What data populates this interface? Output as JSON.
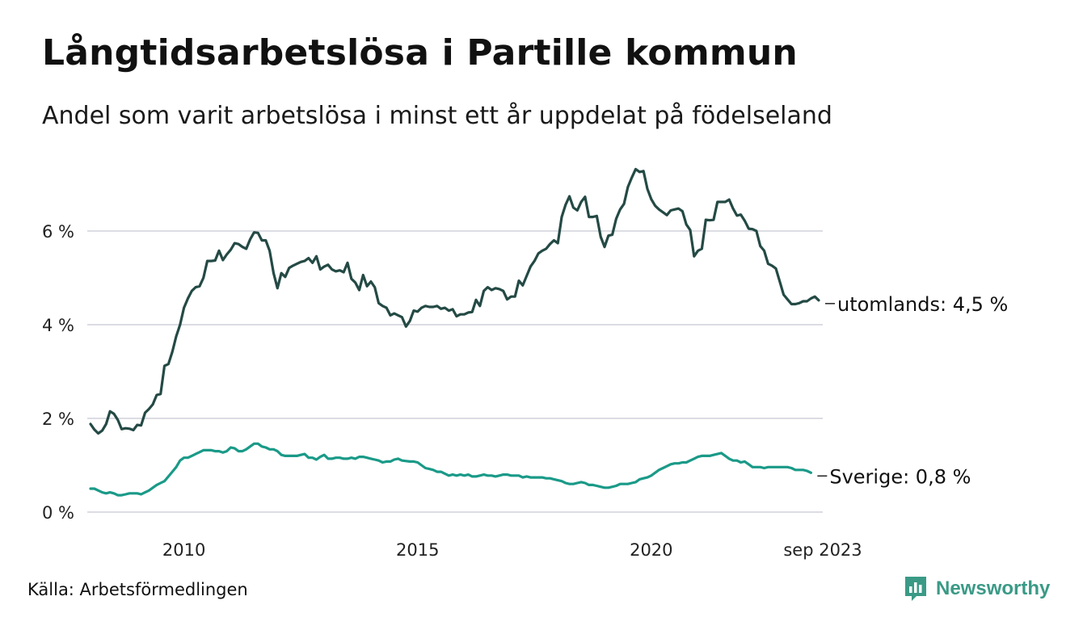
{
  "header": {
    "title": "Långtidsarbetslösa i Partille kommun",
    "subtitle": "Andel som varit arbetslösa i minst ett år uppdelat på födelseland"
  },
  "footer": {
    "source": "Källa: Arbetsförmedlingen",
    "brand": "Newsworthy"
  },
  "colors": {
    "utomlands": "#244a45",
    "sverige": "#1a9a88",
    "grid": "#dcdce4",
    "brand": "#3a9a86"
  },
  "chart_data": {
    "type": "line",
    "title": "Långtidsarbetslösa i Partille kommun",
    "subtitle": "Andel som varit arbetslösa i minst ett år uppdelat på födelseland",
    "x_start": 2008.0,
    "x_step": 0.0833333,
    "xlim": [
      2008.0,
      2023.67
    ],
    "ylim": [
      0,
      7.4
    ],
    "y_ticks": [
      0,
      2,
      4,
      6
    ],
    "y_tick_labels": [
      "0 %",
      "2 %",
      "4 %",
      "6 %"
    ],
    "x_ticks": [
      2010,
      2015,
      2020,
      2023.67
    ],
    "x_tick_labels": [
      "2010",
      "2015",
      "2020",
      "sep 2023"
    ],
    "grid": true,
    "series": [
      {
        "name": "utomlands",
        "end_label": "utomlands: 4,5 %",
        "values": [
          1.88,
          1.76,
          1.68,
          1.74,
          1.88,
          2.15,
          2.1,
          1.97,
          1.77,
          1.79,
          1.78,
          1.75,
          1.86,
          1.85,
          2.12,
          2.2,
          2.3,
          2.5,
          2.52,
          3.12,
          3.16,
          3.42,
          3.75,
          4.0,
          4.36,
          4.56,
          4.72,
          4.8,
          4.82,
          5.0,
          5.36,
          5.36,
          5.37,
          5.58,
          5.38,
          5.5,
          5.6,
          5.74,
          5.72,
          5.66,
          5.62,
          5.82,
          5.97,
          5.96,
          5.8,
          5.8,
          5.58,
          5.1,
          4.78,
          5.1,
          5.02,
          5.21,
          5.26,
          5.3,
          5.34,
          5.36,
          5.42,
          5.32,
          5.46,
          5.18,
          5.24,
          5.28,
          5.18,
          5.14,
          5.16,
          5.12,
          5.32,
          4.98,
          4.9,
          4.74,
          5.06,
          4.82,
          4.92,
          4.8,
          4.46,
          4.4,
          4.36,
          4.2,
          4.24,
          4.2,
          4.16,
          3.96,
          4.08,
          4.3,
          4.28,
          4.36,
          4.4,
          4.38,
          4.38,
          4.4,
          4.34,
          4.36,
          4.3,
          4.33,
          4.18,
          4.22,
          4.22,
          4.26,
          4.27,
          4.53,
          4.4,
          4.72,
          4.8,
          4.74,
          4.78,
          4.76,
          4.72,
          4.54,
          4.6,
          4.6,
          4.94,
          4.84,
          5.04,
          5.24,
          5.36,
          5.52,
          5.58,
          5.62,
          5.72,
          5.8,
          5.74,
          6.3,
          6.56,
          6.74,
          6.5,
          6.44,
          6.62,
          6.73,
          6.3,
          6.3,
          6.32,
          5.88,
          5.66,
          5.9,
          5.92,
          6.26,
          6.46,
          6.58,
          6.94,
          7.14,
          7.32,
          7.26,
          7.28,
          6.9,
          6.68,
          6.54,
          6.46,
          6.4,
          6.34,
          6.44,
          6.46,
          6.48,
          6.42,
          6.14,
          6.02,
          5.46,
          5.58,
          5.62,
          6.24,
          6.23,
          6.24,
          6.62,
          6.62,
          6.62,
          6.67,
          6.48,
          6.33,
          6.35,
          6.22,
          6.05,
          6.04,
          6.0,
          5.68,
          5.58,
          5.3,
          5.26,
          5.2,
          4.92,
          4.64,
          4.54,
          4.44,
          4.44,
          4.46,
          4.5,
          4.5,
          4.56,
          4.6,
          4.52
        ]
      },
      {
        "name": "Sverige",
        "end_label": "Sverige: 0,8 %",
        "values": [
          0.5,
          0.5,
          0.46,
          0.42,
          0.4,
          0.42,
          0.4,
          0.36,
          0.36,
          0.38,
          0.4,
          0.4,
          0.4,
          0.38,
          0.42,
          0.46,
          0.52,
          0.58,
          0.62,
          0.66,
          0.76,
          0.86,
          0.96,
          1.1,
          1.16,
          1.16,
          1.2,
          1.24,
          1.28,
          1.32,
          1.32,
          1.32,
          1.3,
          1.3,
          1.27,
          1.3,
          1.38,
          1.36,
          1.3,
          1.3,
          1.34,
          1.4,
          1.46,
          1.46,
          1.4,
          1.38,
          1.34,
          1.34,
          1.3,
          1.22,
          1.2,
          1.2,
          1.2,
          1.2,
          1.22,
          1.24,
          1.16,
          1.16,
          1.12,
          1.18,
          1.22,
          1.14,
          1.14,
          1.16,
          1.16,
          1.14,
          1.14,
          1.16,
          1.14,
          1.18,
          1.18,
          1.16,
          1.14,
          1.12,
          1.1,
          1.06,
          1.08,
          1.08,
          1.12,
          1.14,
          1.1,
          1.09,
          1.08,
          1.08,
          1.06,
          1.0,
          0.94,
          0.92,
          0.9,
          0.86,
          0.86,
          0.82,
          0.78,
          0.8,
          0.78,
          0.8,
          0.78,
          0.8,
          0.76,
          0.76,
          0.78,
          0.8,
          0.78,
          0.78,
          0.76,
          0.78,
          0.8,
          0.8,
          0.78,
          0.78,
          0.78,
          0.74,
          0.76,
          0.74,
          0.74,
          0.74,
          0.74,
          0.72,
          0.72,
          0.7,
          0.68,
          0.66,
          0.62,
          0.6,
          0.6,
          0.62,
          0.64,
          0.62,
          0.58,
          0.58,
          0.56,
          0.54,
          0.52,
          0.52,
          0.54,
          0.56,
          0.6,
          0.6,
          0.6,
          0.62,
          0.64,
          0.7,
          0.72,
          0.74,
          0.78,
          0.84,
          0.9,
          0.94,
          0.98,
          1.02,
          1.04,
          1.04,
          1.06,
          1.06,
          1.1,
          1.14,
          1.18,
          1.2,
          1.2,
          1.2,
          1.22,
          1.24,
          1.26,
          1.2,
          1.14,
          1.1,
          1.1,
          1.06,
          1.08,
          1.02,
          0.96,
          0.96,
          0.96,
          0.94,
          0.96,
          0.96,
          0.96,
          0.96,
          0.96,
          0.96,
          0.94,
          0.9,
          0.9,
          0.9,
          0.88,
          0.84
        ]
      }
    ]
  }
}
